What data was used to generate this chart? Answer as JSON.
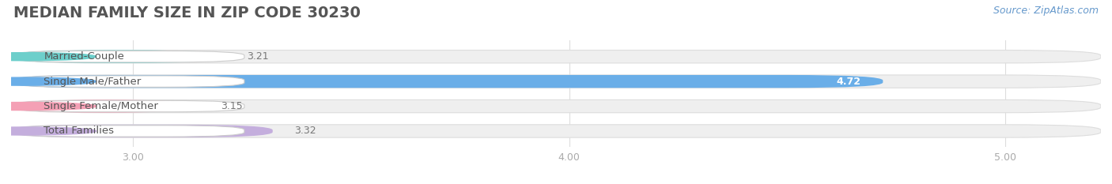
{
  "title": "MEDIAN FAMILY SIZE IN ZIP CODE 30230",
  "source": "Source: ZipAtlas.com",
  "categories": [
    "Married-Couple",
    "Single Male/Father",
    "Single Female/Mother",
    "Total Families"
  ],
  "values": [
    3.21,
    4.72,
    3.15,
    3.32
  ],
  "bar_colors": [
    "#6dcfcb",
    "#6aaee8",
    "#f4a0b5",
    "#c4aedd"
  ],
  "value_label_colors": [
    "#888888",
    "#ffffff",
    "#888888",
    "#888888"
  ],
  "xlim": [
    2.72,
    5.22
  ],
  "xticks": [
    3.0,
    4.0,
    5.0
  ],
  "xtick_labels": [
    "3.00",
    "4.00",
    "5.00"
  ],
  "background_color": "#ffffff",
  "bar_bg_color": "#efefef",
  "title_fontsize": 14,
  "label_fontsize": 9.5,
  "value_fontsize": 9,
  "source_fontsize": 9
}
